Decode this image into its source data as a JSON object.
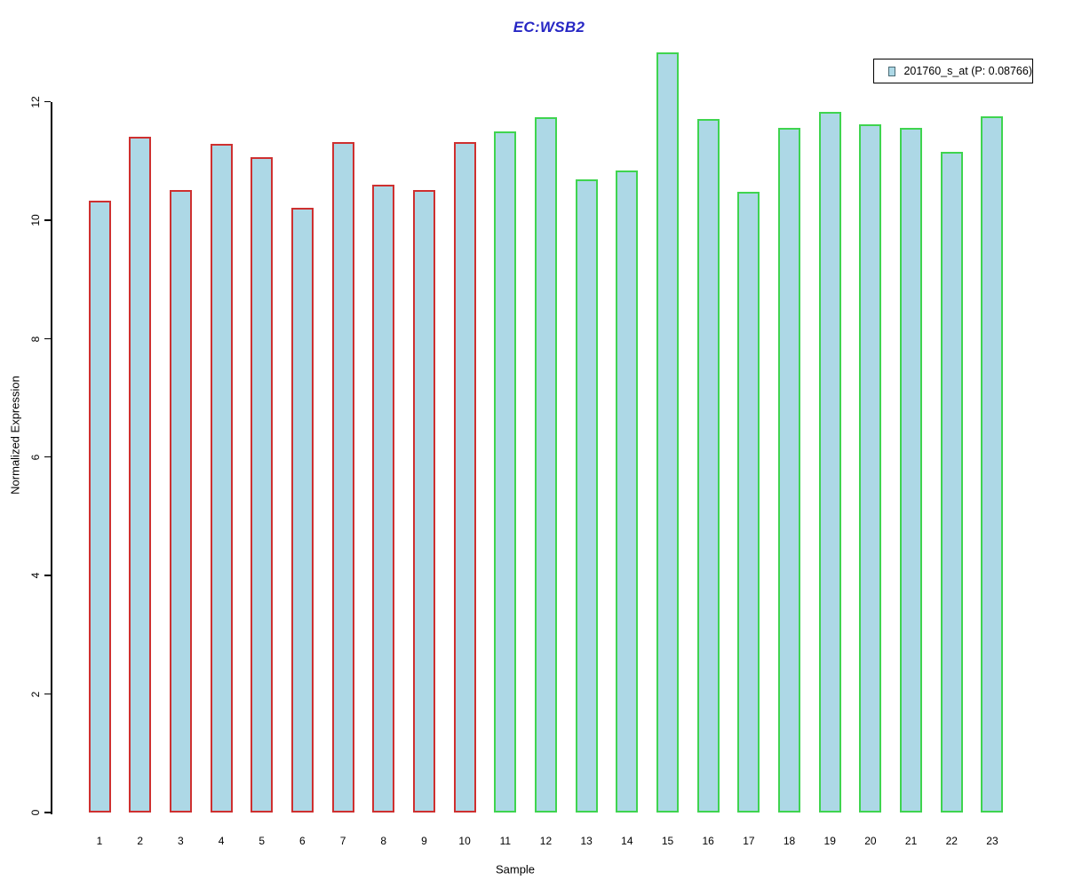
{
  "chart_data": {
    "type": "bar",
    "title": "EC:WSB2",
    "title_color": "#2626C4",
    "xlabel": "Sample",
    "ylabel": "Normalized Expression",
    "categories": [
      "1",
      "2",
      "3",
      "4",
      "5",
      "6",
      "7",
      "8",
      "9",
      "10",
      "11",
      "12",
      "13",
      "14",
      "15",
      "16",
      "17",
      "18",
      "19",
      "20",
      "21",
      "22",
      "23"
    ],
    "values": [
      10.34,
      11.41,
      10.52,
      11.3,
      11.07,
      10.21,
      11.32,
      10.6,
      10.51,
      11.33,
      11.51,
      11.74,
      10.7,
      10.84,
      12.84,
      11.72,
      10.48,
      11.57,
      11.83,
      11.63,
      11.56,
      11.16,
      11.76
    ],
    "yticks": [
      0,
      2,
      4,
      6,
      8,
      10,
      12
    ],
    "ylim": [
      0,
      12
    ],
    "grid": false,
    "bar_fill": "#ADD8E6",
    "group_of_bar": [
      0,
      0,
      0,
      0,
      0,
      0,
      0,
      0,
      0,
      0,
      1,
      1,
      1,
      1,
      1,
      1,
      1,
      1,
      1,
      1,
      1,
      1,
      1
    ],
    "groups": [
      {
        "name": "samples-1-10",
        "border_color": "#CE3030"
      },
      {
        "name": "samples-11-23",
        "border_color": "#3FD44F"
      }
    ],
    "legend": {
      "position": "top-right",
      "label": "201760_s_at (P: 0.08766)",
      "swatch_fill": "#ADD8E6",
      "swatch_border": "#4a6a74"
    }
  }
}
